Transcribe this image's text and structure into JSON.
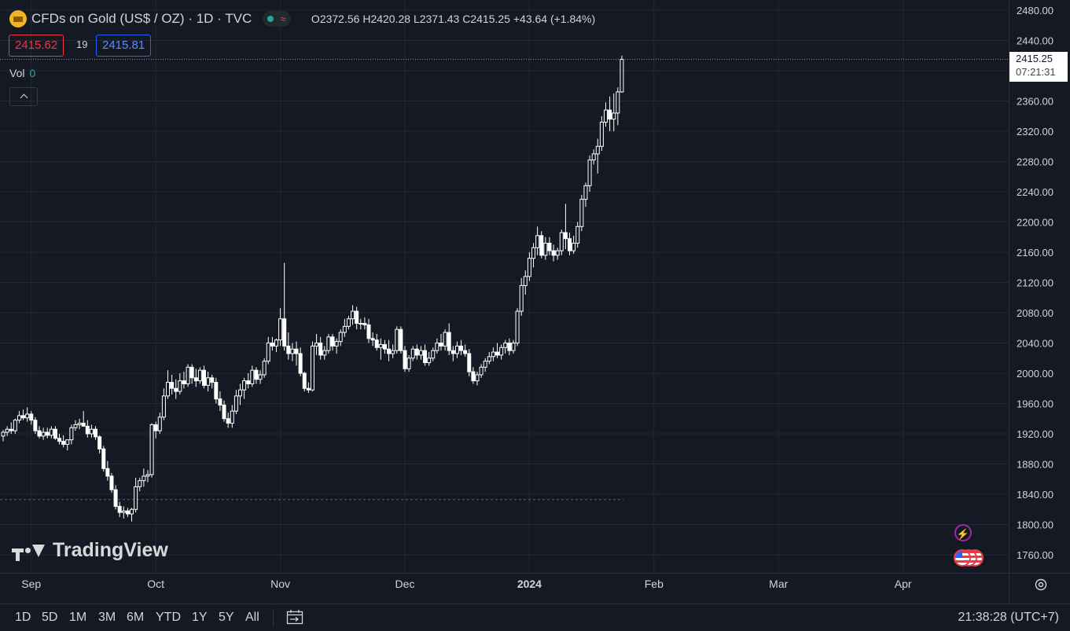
{
  "header": {
    "title": "CFDs on Gold (US$ / OZ) · 1D · TVC",
    "status_wave": "≈",
    "open_label": "O",
    "open": "2372.56",
    "high_label": "H",
    "high": "2420.28",
    "low_label": "L",
    "low": "2371.43",
    "close_label": "C",
    "close": "2415.25",
    "change": "+43.64 (+1.84%)"
  },
  "quote": {
    "bid": "2415.62",
    "spread": "19",
    "ask": "2415.81"
  },
  "volume": {
    "label": "Vol",
    "value": "0"
  },
  "last_price": {
    "price": "2415.25",
    "countdown": "07:21:31"
  },
  "watermark": "TradingView",
  "colors": {
    "background": "#151924",
    "grid": "#242834",
    "candle_body": "#ffffff",
    "candle_up_fill": "#151924",
    "bid": "#f23645",
    "ask": "#2962ff",
    "accent_green": "#26a69a"
  },
  "bottom_bar": {
    "ranges": [
      "1D",
      "5D",
      "1M",
      "3M",
      "6M",
      "YTD",
      "1Y",
      "5Y",
      "All"
    ],
    "clock": "21:38:28 (UTC+7)"
  },
  "chart_data": {
    "type": "candlestick",
    "title": "CFDs on Gold (US$ / OZ) · 1D · TVC",
    "ylim": [
      1740,
      2490
    ],
    "y_ticks": [
      1760,
      1800,
      1840,
      1880,
      1920,
      1960,
      2000,
      2040,
      2080,
      2120,
      2160,
      2200,
      2240,
      2280,
      2320,
      2360,
      2400,
      2440,
      2480
    ],
    "y_tick_labels": [
      "1760.00",
      "1800.00",
      "1840.00",
      "1880.00",
      "1920.00",
      "1960.00",
      "2000.00",
      "2040.00",
      "2080.00",
      "2120.00",
      "2160.00",
      "2200.00",
      "2240.00",
      "2280.00",
      "2320.00",
      "2360.00",
      "2400.00",
      "2440.00",
      "2480.00"
    ],
    "x_labels": [
      "Sep",
      "Oct",
      "Nov",
      "Dec",
      "2024",
      "Feb",
      "Mar",
      "Apr"
    ],
    "x_label_index": [
      7,
      38,
      69,
      100,
      131,
      162,
      193,
      224
    ],
    "last_price": 2415.25,
    "reference_level": 1833,
    "grid": true,
    "candles": [
      [
        1917,
        1925,
        1910,
        1922
      ],
      [
        1922,
        1930,
        1917,
        1926
      ],
      [
        1926,
        1935,
        1920,
        1924
      ],
      [
        1924,
        1940,
        1920,
        1938
      ],
      [
        1938,
        1950,
        1934,
        1944
      ],
      [
        1944,
        1952,
        1938,
        1941
      ],
      [
        1941,
        1955,
        1936,
        1946
      ],
      [
        1946,
        1950,
        1932,
        1938
      ],
      [
        1938,
        1942,
        1920,
        1924
      ],
      [
        1924,
        1930,
        1914,
        1917
      ],
      [
        1917,
        1928,
        1912,
        1922
      ],
      [
        1922,
        1928,
        1914,
        1918
      ],
      [
        1918,
        1930,
        1914,
        1926
      ],
      [
        1926,
        1930,
        1912,
        1914
      ],
      [
        1914,
        1920,
        1906,
        1910
      ],
      [
        1910,
        1918,
        1902,
        1906
      ],
      [
        1906,
        1912,
        1898,
        1912
      ],
      [
        1912,
        1932,
        1906,
        1928
      ],
      [
        1928,
        1938,
        1924,
        1932
      ],
      [
        1932,
        1940,
        1926,
        1934
      ],
      [
        1934,
        1950,
        1930,
        1930
      ],
      [
        1930,
        1938,
        1915,
        1920
      ],
      [
        1920,
        1932,
        1915,
        1926
      ],
      [
        1926,
        1930,
        1912,
        1916
      ],
      [
        1916,
        1918,
        1894,
        1900
      ],
      [
        1900,
        1904,
        1870,
        1874
      ],
      [
        1874,
        1884,
        1858,
        1864
      ],
      [
        1864,
        1868,
        1842,
        1846
      ],
      [
        1846,
        1852,
        1820,
        1824
      ],
      [
        1824,
        1830,
        1810,
        1816
      ],
      [
        1816,
        1824,
        1808,
        1818
      ],
      [
        1818,
        1822,
        1810,
        1814
      ],
      [
        1814,
        1822,
        1804,
        1820
      ],
      [
        1820,
        1862,
        1816,
        1850
      ],
      [
        1850,
        1862,
        1844,
        1858
      ],
      [
        1858,
        1874,
        1850,
        1864
      ],
      [
        1864,
        1872,
        1856,
        1866
      ],
      [
        1866,
        1934,
        1862,
        1932
      ],
      [
        1932,
        1936,
        1914,
        1924
      ],
      [
        1924,
        1948,
        1920,
        1942
      ],
      [
        1942,
        1980,
        1938,
        1970
      ],
      [
        1970,
        2004,
        1966,
        1988
      ],
      [
        1988,
        1998,
        1972,
        1980
      ],
      [
        1980,
        1992,
        1966,
        1976
      ],
      [
        1976,
        2000,
        1972,
        1990
      ],
      [
        1990,
        2002,
        1980,
        1986
      ],
      [
        1986,
        2012,
        1982,
        2008
      ],
      [
        2008,
        2012,
        1986,
        1994
      ],
      [
        1994,
        2006,
        1982,
        1990
      ],
      [
        1990,
        2008,
        1986,
        2004
      ],
      [
        2004,
        2010,
        1980,
        1984
      ],
      [
        1984,
        2002,
        1976,
        1994
      ],
      [
        1994,
        1998,
        1980,
        1988
      ],
      [
        1988,
        1994,
        1960,
        1966
      ],
      [
        1966,
        1976,
        1950,
        1958
      ],
      [
        1958,
        1964,
        1936,
        1940
      ],
      [
        1940,
        1948,
        1928,
        1934
      ],
      [
        1934,
        1958,
        1928,
        1950
      ],
      [
        1950,
        1978,
        1946,
        1970
      ],
      [
        1970,
        1986,
        1958,
        1978
      ],
      [
        1978,
        1994,
        1966,
        1990
      ],
      [
        1990,
        2000,
        1980,
        1986
      ],
      [
        1986,
        2010,
        1982,
        2004
      ],
      [
        2004,
        2008,
        1986,
        1992
      ],
      [
        1992,
        2004,
        1986,
        1998
      ],
      [
        1998,
        2020,
        1994,
        2016
      ],
      [
        2016,
        2048,
        2012,
        2040
      ],
      [
        2040,
        2048,
        2030,
        2036
      ],
      [
        2036,
        2046,
        2028,
        2044
      ],
      [
        2044,
        2086,
        2036,
        2072
      ],
      [
        2072,
        2146,
        2030,
        2036
      ],
      [
        2036,
        2054,
        2018,
        2026
      ],
      [
        2026,
        2040,
        2016,
        2032
      ],
      [
        2032,
        2042,
        2010,
        2026
      ],
      [
        2026,
        2034,
        1996,
        2000
      ],
      [
        2000,
        2002,
        1976,
        1980
      ],
      [
        1980,
        1988,
        1974,
        1978
      ],
      [
        1978,
        2042,
        1976,
        2036
      ],
      [
        2036,
        2052,
        2024,
        2040
      ],
      [
        2040,
        2048,
        2018,
        2024
      ],
      [
        2024,
        2036,
        2018,
        2030
      ],
      [
        2030,
        2052,
        2026,
        2048
      ],
      [
        2048,
        2052,
        2030,
        2036
      ],
      [
        2036,
        2046,
        2026,
        2042
      ],
      [
        2042,
        2058,
        2036,
        2054
      ],
      [
        2054,
        2072,
        2048,
        2062
      ],
      [
        2062,
        2076,
        2058,
        2072
      ],
      [
        2072,
        2090,
        2064,
        2082
      ],
      [
        2082,
        2088,
        2058,
        2066
      ],
      [
        2066,
        2072,
        2058,
        2066
      ],
      [
        2066,
        2074,
        2058,
        2064
      ],
      [
        2064,
        2072,
        2040,
        2046
      ],
      [
        2046,
        2054,
        2036,
        2044
      ],
      [
        2044,
        2052,
        2030,
        2034
      ],
      [
        2034,
        2046,
        2018,
        2038
      ],
      [
        2038,
        2044,
        2026,
        2032
      ],
      [
        2032,
        2044,
        2016,
        2026
      ],
      [
        2026,
        2038,
        2020,
        2030
      ],
      [
        2030,
        2062,
        2026,
        2058
      ],
      [
        2058,
        2062,
        2026,
        2030
      ],
      [
        2030,
        2036,
        2002,
        2006
      ],
      [
        2006,
        2024,
        2002,
        2020
      ],
      [
        2020,
        2036,
        2016,
        2032
      ],
      [
        2032,
        2038,
        2018,
        2024
      ],
      [
        2024,
        2036,
        2018,
        2030
      ],
      [
        2030,
        2038,
        2010,
        2014
      ],
      [
        2014,
        2028,
        2010,
        2020
      ],
      [
        2020,
        2034,
        2016,
        2030
      ],
      [
        2030,
        2046,
        2026,
        2040
      ],
      [
        2040,
        2052,
        2030,
        2036
      ],
      [
        2036,
        2058,
        2030,
        2054
      ],
      [
        2054,
        2066,
        2024,
        2030
      ],
      [
        2030,
        2036,
        2016,
        2026
      ],
      [
        2026,
        2042,
        2020,
        2036
      ],
      [
        2036,
        2044,
        2024,
        2030
      ],
      [
        2030,
        2038,
        2022,
        2026
      ],
      [
        2026,
        2032,
        1996,
        2002
      ],
      [
        2002,
        2008,
        1986,
        1990
      ],
      [
        1990,
        2002,
        1984,
        1998
      ],
      [
        1998,
        2012,
        1994,
        2008
      ],
      [
        2008,
        2020,
        2002,
        2016
      ],
      [
        2016,
        2028,
        2012,
        2022
      ],
      [
        2022,
        2034,
        2016,
        2028
      ],
      [
        2028,
        2040,
        2020,
        2024
      ],
      [
        2024,
        2038,
        2018,
        2034
      ],
      [
        2034,
        2044,
        2026,
        2040
      ],
      [
        2040,
        2046,
        2024,
        2030
      ],
      [
        2030,
        2044,
        2026,
        2040
      ],
      [
        2040,
        2086,
        2036,
        2082
      ],
      [
        2082,
        2126,
        2076,
        2116
      ],
      [
        2116,
        2136,
        2104,
        2128
      ],
      [
        2128,
        2160,
        2122,
        2152
      ],
      [
        2152,
        2172,
        2140,
        2166
      ],
      [
        2166,
        2194,
        2156,
        2182
      ],
      [
        2182,
        2188,
        2152,
        2156
      ],
      [
        2156,
        2180,
        2150,
        2172
      ],
      [
        2172,
        2180,
        2156,
        2162
      ],
      [
        2162,
        2170,
        2148,
        2156
      ],
      [
        2156,
        2166,
        2150,
        2162
      ],
      [
        2162,
        2190,
        2156,
        2186
      ],
      [
        2186,
        2224,
        2164,
        2178
      ],
      [
        2178,
        2186,
        2156,
        2162
      ],
      [
        2162,
        2182,
        2158,
        2172
      ],
      [
        2172,
        2200,
        2166,
        2194
      ],
      [
        2194,
        2236,
        2188,
        2230
      ],
      [
        2230,
        2252,
        2220,
        2248
      ],
      [
        2248,
        2288,
        2240,
        2282
      ],
      [
        2282,
        2296,
        2276,
        2290
      ],
      [
        2290,
        2310,
        2264,
        2300
      ],
      [
        2300,
        2340,
        2294,
        2332
      ],
      [
        2332,
        2358,
        2326,
        2348
      ],
      [
        2348,
        2366,
        2320,
        2336
      ],
      [
        2336,
        2370,
        2320,
        2344
      ],
      [
        2344,
        2378,
        2328,
        2372
      ],
      [
        2372,
        2420,
        2371,
        2415
      ]
    ]
  }
}
